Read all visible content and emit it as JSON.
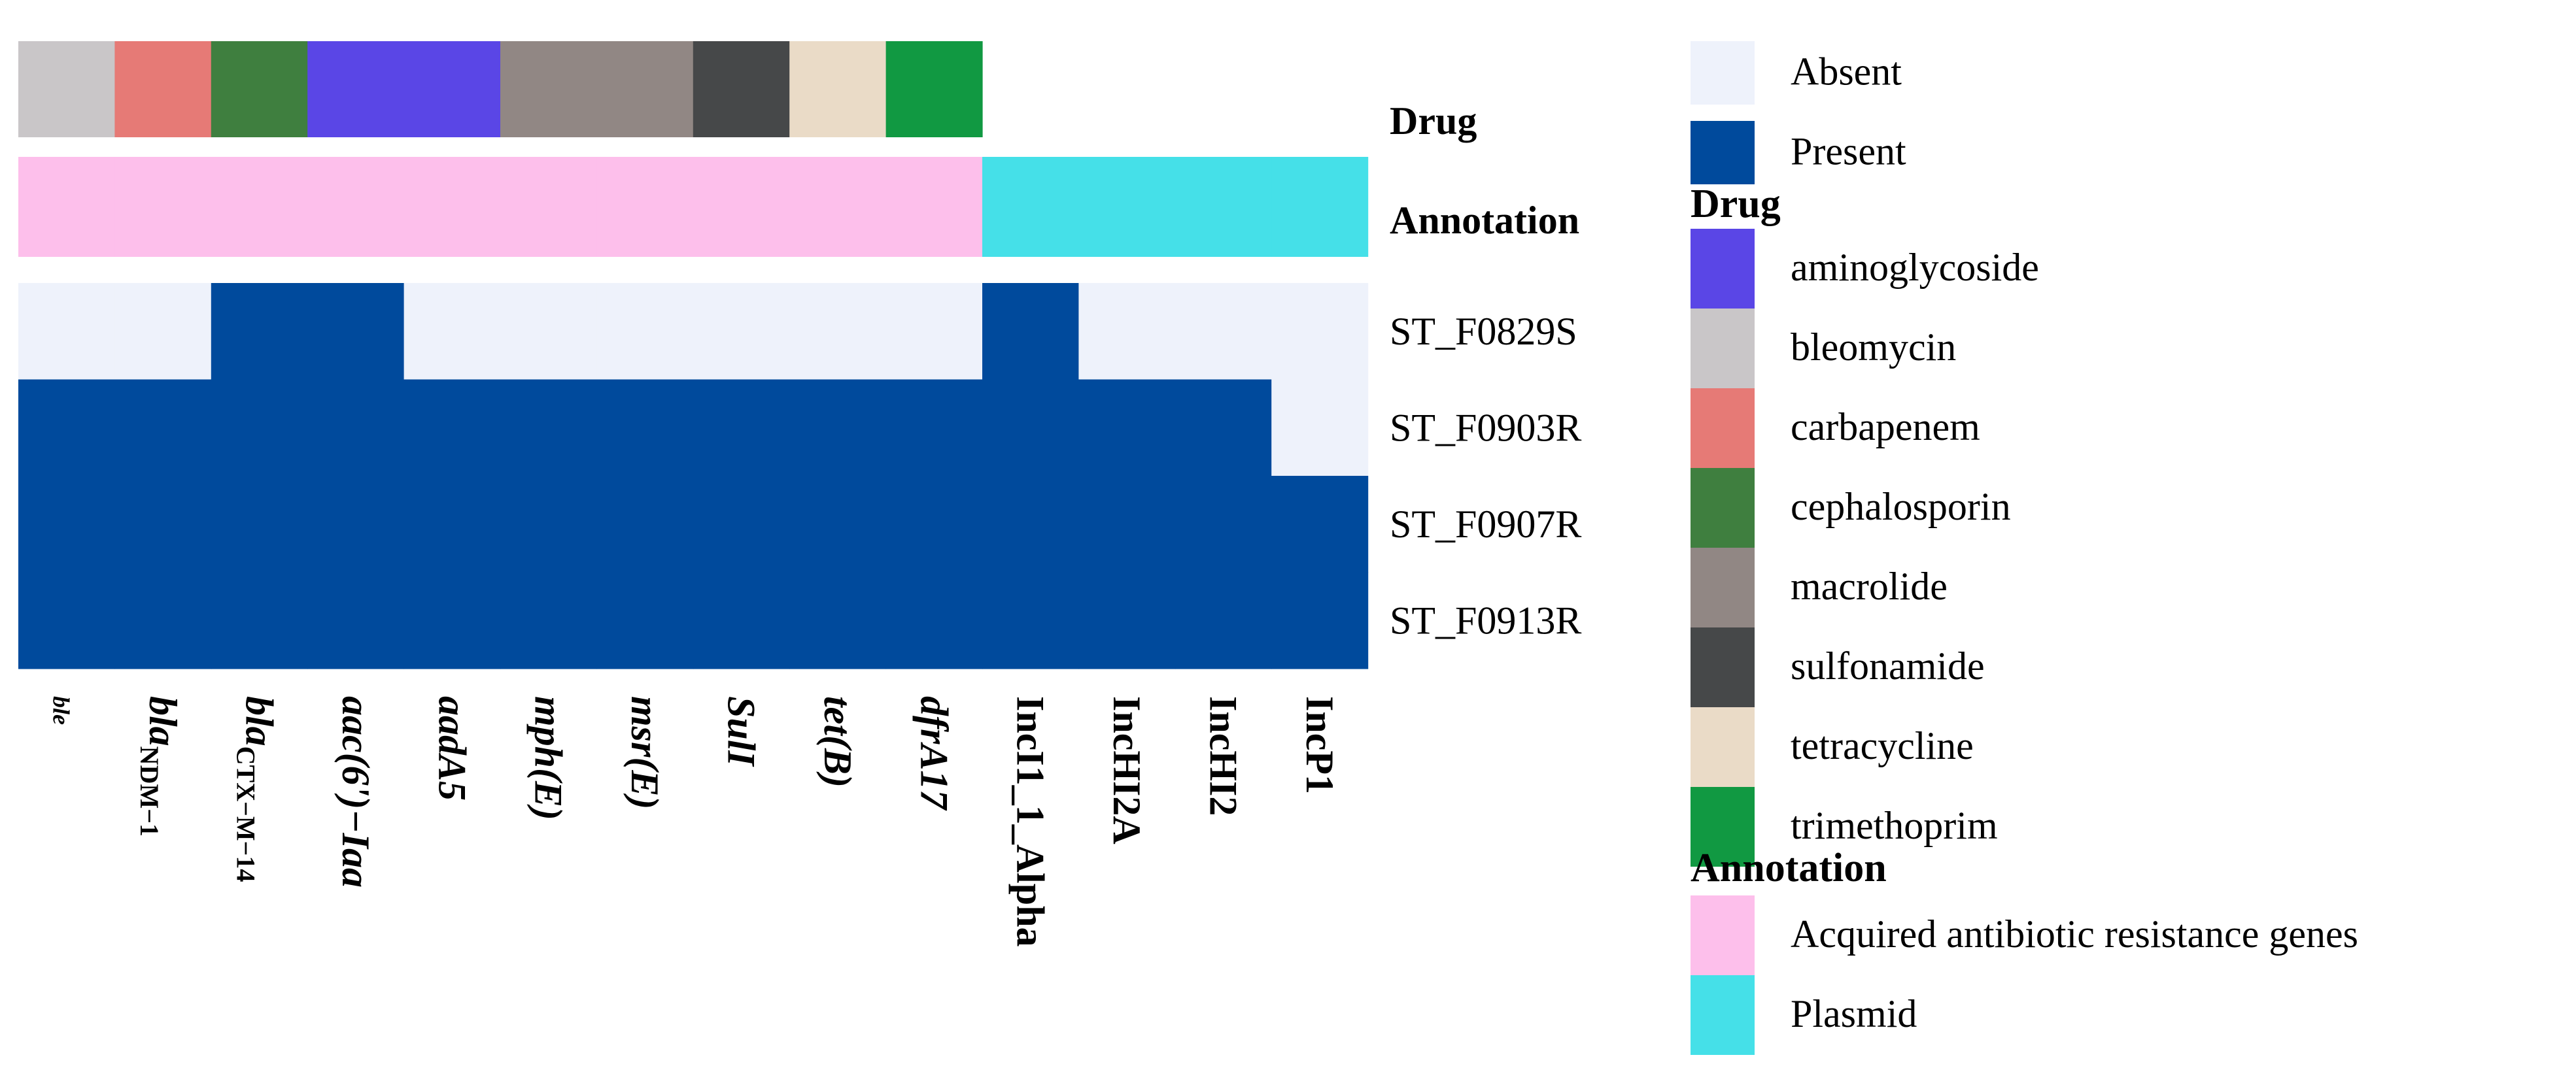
{
  "chart_data": {
    "type": "heatmap",
    "title": "",
    "genes": [
      {
        "id": "ble",
        "label": "ble",
        "italic": true,
        "bold": true,
        "drug": "bleomycin",
        "annotation": "Acquired antibiotic resistance genes"
      },
      {
        "id": "blaNDM1",
        "label": "bla",
        "sub": "NDM−1",
        "italic": true,
        "bold": true,
        "drug": "carbapenem",
        "annotation": "Acquired antibiotic resistance genes"
      },
      {
        "id": "blaCTXM14",
        "label": "bla",
        "sub": "CTX−M−14",
        "italic": true,
        "bold": true,
        "drug": "cephalosporin",
        "annotation": "Acquired antibiotic resistance genes"
      },
      {
        "id": "aac6",
        "label": "aac(6')−Iaa",
        "italic": true,
        "bold": true,
        "drug": "aminoglycoside",
        "annotation": "Acquired antibiotic resistance genes"
      },
      {
        "id": "aadA5",
        "label": "aadA5",
        "italic": true,
        "bold": true,
        "drug": "aminoglycoside",
        "annotation": "Acquired antibiotic resistance genes"
      },
      {
        "id": "mphE",
        "label": "mph(E)",
        "italic": true,
        "bold": true,
        "drug": "macrolide",
        "annotation": "Acquired antibiotic resistance genes"
      },
      {
        "id": "msrE",
        "label": "msr(E)",
        "italic": true,
        "bold": true,
        "drug": "macrolide",
        "annotation": "Acquired antibiotic resistance genes"
      },
      {
        "id": "Sul1",
        "label": "SulI",
        "italic": true,
        "bold": true,
        "drug": "sulfonamide",
        "annotation": "Acquired antibiotic resistance genes"
      },
      {
        "id": "tetB",
        "label": "tet(B)",
        "italic": true,
        "bold": true,
        "drug": "tetracycline",
        "annotation": "Acquired antibiotic resistance genes"
      },
      {
        "id": "dfrA17",
        "label": "dfrA17",
        "italic": true,
        "bold": true,
        "drug": "trimethoprim",
        "annotation": "Acquired antibiotic resistance genes"
      },
      {
        "id": "IncI1",
        "label": "IncI1_1_Alpha",
        "italic": false,
        "bold": true,
        "drug": null,
        "annotation": "Plasmid"
      },
      {
        "id": "IncHI2A",
        "label": "IncHI2A",
        "italic": false,
        "bold": true,
        "drug": null,
        "annotation": "Plasmid"
      },
      {
        "id": "IncHI2",
        "label": "IncHI2",
        "italic": false,
        "bold": true,
        "drug": null,
        "annotation": "Plasmid"
      },
      {
        "id": "IncP1",
        "label": "IncP1",
        "italic": false,
        "bold": true,
        "drug": null,
        "annotation": "Plasmid"
      }
    ],
    "samples": [
      "ST_F0829S",
      "ST_F0903R",
      "ST_F0907R",
      "ST_F0913R"
    ],
    "matrix": [
      [
        0,
        0,
        1,
        1,
        0,
        0,
        0,
        0,
        0,
        0,
        1,
        0,
        0,
        0
      ],
      [
        1,
        1,
        1,
        1,
        1,
        1,
        1,
        1,
        1,
        1,
        1,
        1,
        1,
        0
      ],
      [
        1,
        1,
        1,
        1,
        1,
        1,
        1,
        1,
        1,
        1,
        1,
        1,
        1,
        1
      ],
      [
        1,
        1,
        1,
        1,
        1,
        1,
        1,
        1,
        1,
        1,
        1,
        1,
        1,
        1
      ]
    ],
    "row_annotation_labels": {
      "drug": "Drug",
      "annotation": "Annotation"
    },
    "value_legend": [
      {
        "label": "Absent",
        "value": 0,
        "color": "#eef2fb"
      },
      {
        "label": "Present",
        "value": 1,
        "color": "#004a9c"
      }
    ],
    "drug_legend": {
      "title": "Drug",
      "items": [
        {
          "label": "aminoglycoside",
          "color": "#5a46e6"
        },
        {
          "label": "bleomycin",
          "color": "#c9c6c8"
        },
        {
          "label": "carbapenem",
          "color": "#e67a76"
        },
        {
          "label": "cephalosporin",
          "color": "#3f7f3f"
        },
        {
          "label": "macrolide",
          "color": "#918784"
        },
        {
          "label": "sulfonamide",
          "color": "#464849"
        },
        {
          "label": "tetracycline",
          "color": "#eadbc7"
        },
        {
          "label": "trimethoprim",
          "color": "#119942"
        }
      ]
    },
    "annotation_legend": {
      "title": "Annotation",
      "items": [
        {
          "label": "Acquired antibiotic resistance genes",
          "color": "#fdbfeb"
        },
        {
          "label": "Plasmid",
          "color": "#45e0e8"
        }
      ]
    },
    "legend_position": "right"
  }
}
